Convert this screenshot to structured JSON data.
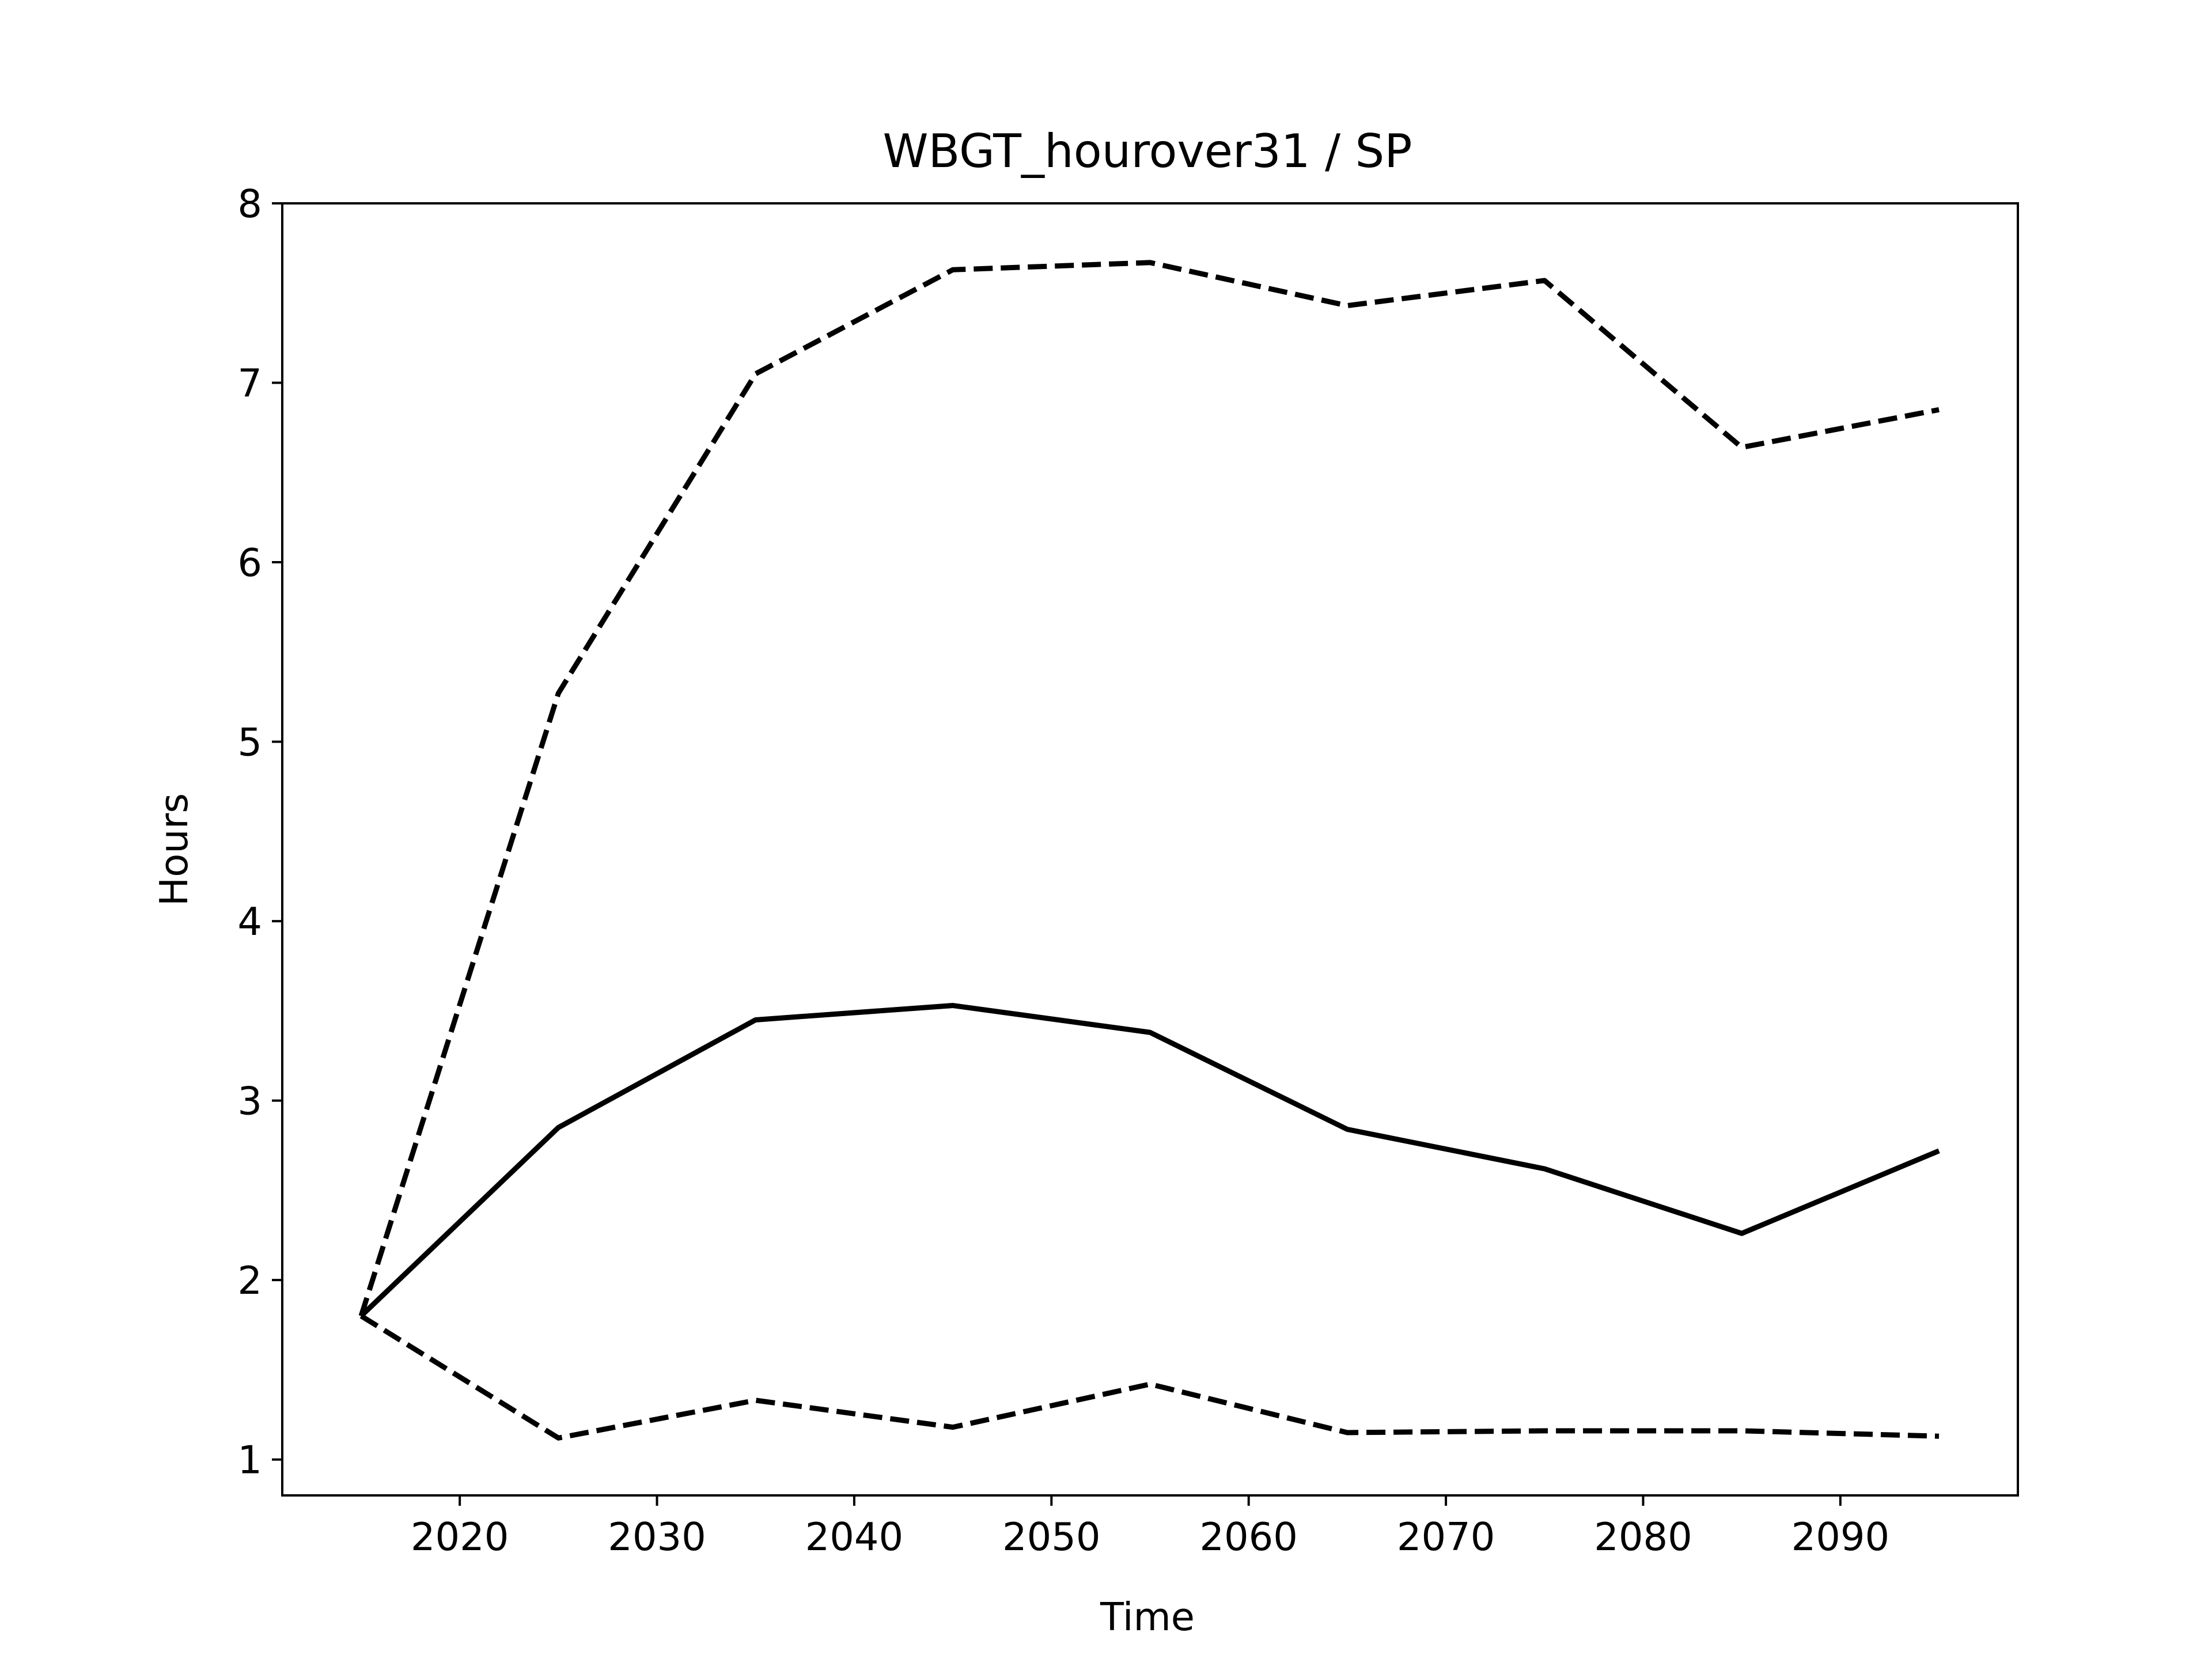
{
  "chart_data": {
    "type": "line",
    "title": "WBGT_hourover31 / SP",
    "xlabel": "Time",
    "ylabel": "Hours",
    "xlim": [
      2011,
      2099
    ],
    "ylim": [
      0.8,
      8.0
    ],
    "x_ticks": [
      2020,
      2030,
      2040,
      2050,
      2060,
      2070,
      2080,
      2090
    ],
    "y_ticks": [
      1,
      2,
      3,
      4,
      5,
      6,
      7,
      8
    ],
    "grid": false,
    "legend": "none",
    "x": [
      2015,
      2025,
      2035,
      2045,
      2055,
      2065,
      2075,
      2085,
      2095
    ],
    "series": [
      {
        "style": "solid",
        "color": "#000000",
        "values": [
          1.8,
          2.85,
          3.45,
          3.53,
          3.38,
          2.84,
          2.62,
          2.26,
          2.72
        ]
      },
      {
        "style": "dashed",
        "color": "#000000",
        "values": [
          1.8,
          5.27,
          7.05,
          7.63,
          7.67,
          7.43,
          7.57,
          6.64,
          6.85
        ]
      },
      {
        "style": "dashed",
        "color": "#000000",
        "values": [
          1.8,
          1.12,
          1.33,
          1.18,
          1.42,
          1.15,
          1.16,
          1.16,
          1.13
        ]
      }
    ]
  }
}
